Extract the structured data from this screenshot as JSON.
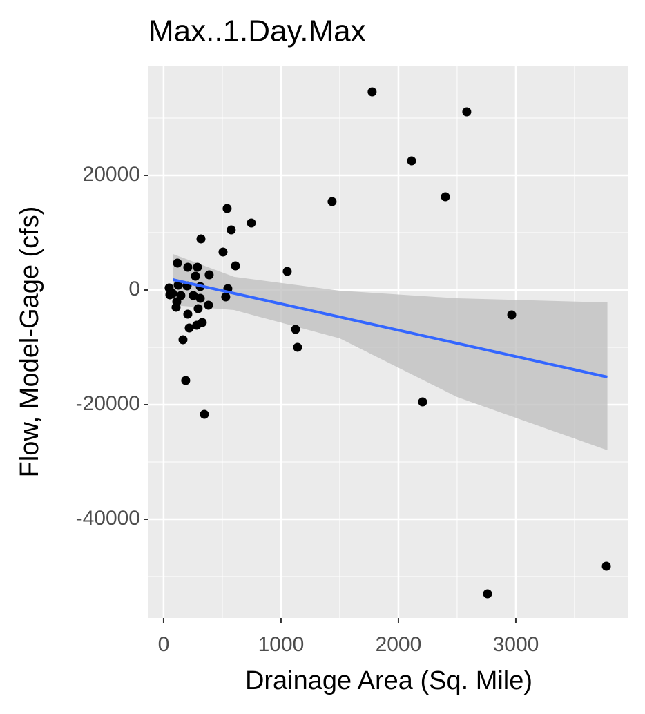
{
  "chart_data": {
    "type": "scatter",
    "title": "Max..1.Day.Max",
    "x_label": "Drainage Area (Sq. Mile)",
    "y_label": "Flow, Model-Gage (cfs)",
    "x": [
      1776,
      2582,
      2112,
      2400,
      1435,
      541,
      747,
      576,
      318,
      506,
      612,
      1053,
      118,
      206,
      288,
      388,
      271,
      47,
      124,
      547,
      200,
      312,
      76,
      147,
      253,
      312,
      529,
      382,
      106,
      294,
      206,
      329,
      282,
      218,
      1124,
      165,
      1141,
      2965,
      188,
      2206,
      347,
      3771,
      2759,
      112,
      53
    ],
    "values": [
      34578,
      31084,
      22530,
      16265,
      15422,
      14217,
      11687,
      10482,
      8916,
      6627,
      4217,
      3253,
      4699,
      3976,
      3976,
      2651,
      2410,
      361,
      843,
      241,
      723,
      602,
      -602,
      -964,
      -964,
      -1446,
      -1205,
      -2651,
      -3012,
      -3253,
      -4217,
      -5663,
      -6145,
      -6627,
      -6867,
      -8675,
      -10000,
      -4337,
      -15783,
      -19518,
      -21687,
      -48193,
      -53012,
      -2048,
      -843
    ],
    "color": "#000000",
    "fit": {
      "x": [
        80,
        600,
        1500,
        2500,
        3780
      ],
      "values": [
        1807,
        -580,
        -4710,
        -9300,
        -15181
      ],
      "lower": [
        -2650,
        -3500,
        -8434,
        -18675,
        -27952
      ],
      "upper": [
        6265,
        2300,
        -120,
        -1446,
        -2169
      ],
      "color": "#3366ff",
      "band_color": "#bdbdbd"
    },
    "xlim": [
      -129,
      3959
    ],
    "ylim": [
      -57229,
      39036
    ],
    "xticks": [
      0,
      1000,
      2000,
      3000
    ],
    "yticks": [
      -40000,
      -20000,
      0,
      20000
    ],
    "x_minor_grid": [
      500,
      1500,
      2500,
      3500
    ],
    "y_minor_grid": [
      -50000,
      -30000,
      -10000,
      10000,
      30000
    ],
    "grid": true
  }
}
